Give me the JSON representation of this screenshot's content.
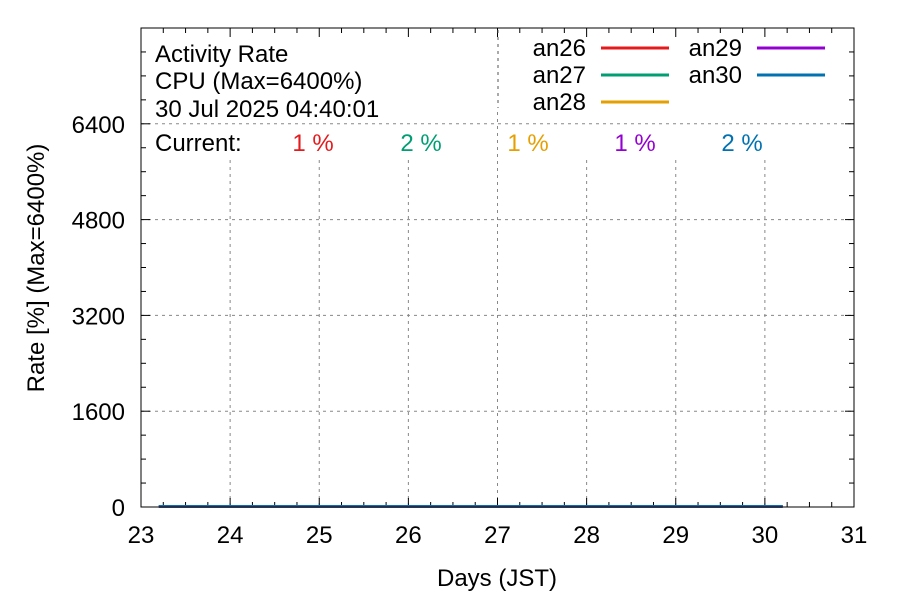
{
  "chart_data": {
    "type": "line",
    "info": {
      "line1": "Activity Rate",
      "line2": "CPU (Max=6400%)",
      "line3": "30 Jul 2025 04:40:01"
    },
    "current_label": "Current:",
    "xlabel": "Days (JST)",
    "ylabel": "Rate [%]  (Max=6400%)",
    "xlim": [
      23,
      31
    ],
    "ylim": [
      0,
      8000
    ],
    "xticks": [
      23,
      24,
      25,
      26,
      27,
      28,
      29,
      30,
      31
    ],
    "yticks": [
      0,
      1600,
      3200,
      4800,
      6400
    ],
    "grid": true,
    "legend_position": "top-right",
    "series": [
      {
        "name": "an26",
        "color": "#e41a1c",
        "current": "1 %",
        "x": [
          23.2,
          30.2
        ],
        "y": [
          1,
          1
        ]
      },
      {
        "name": "an27",
        "color": "#009e73",
        "current": "2 %",
        "x": [
          23.2,
          30.2
        ],
        "y": [
          2,
          2
        ]
      },
      {
        "name": "an28",
        "color": "#e69f00",
        "current": "1 %",
        "x": [
          23.2,
          30.2
        ],
        "y": [
          1,
          1
        ]
      },
      {
        "name": "an29",
        "color": "#9400d3",
        "current": "1 %",
        "x": [
          23.2,
          30.2
        ],
        "y": [
          1,
          1
        ]
      },
      {
        "name": "an30",
        "color": "#0072b2",
        "current": "2 %",
        "x": [
          23.2,
          30.2
        ],
        "y": [
          2,
          2
        ]
      }
    ]
  }
}
